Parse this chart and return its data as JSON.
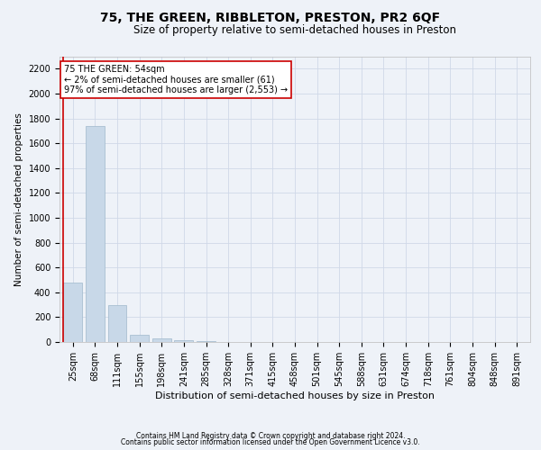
{
  "title": "75, THE GREEN, RIBBLETON, PRESTON, PR2 6QF",
  "subtitle": "Size of property relative to semi-detached houses in Preston",
  "xlabel": "Distribution of semi-detached houses by size in Preston",
  "ylabel": "Number of semi-detached properties",
  "footnote1": "Contains HM Land Registry data © Crown copyright and database right 2024.",
  "footnote2": "Contains public sector information licensed under the Open Government Licence v3.0.",
  "annotation_title": "75 THE GREEN: 54sqm",
  "annotation_line2": "← 2% of semi-detached houses are smaller (61)",
  "annotation_line3": "97% of semi-detached houses are larger (2,553) →",
  "bar_color": "#c8d8e8",
  "bar_edge_color": "#a0b8cc",
  "marker_line_color": "#cc0000",
  "annotation_box_color": "#ffffff",
  "annotation_box_edge": "#cc0000",
  "grid_color": "#d0d8e8",
  "background_color": "#eef2f8",
  "categories": [
    "25sqm",
    "68sqm",
    "111sqm",
    "155sqm",
    "198sqm",
    "241sqm",
    "285sqm",
    "328sqm",
    "371sqm",
    "415sqm",
    "458sqm",
    "501sqm",
    "545sqm",
    "588sqm",
    "631sqm",
    "674sqm",
    "718sqm",
    "761sqm",
    "804sqm",
    "848sqm",
    "891sqm"
  ],
  "values": [
    480,
    1740,
    300,
    60,
    30,
    18,
    5,
    0,
    0,
    0,
    0,
    0,
    0,
    0,
    0,
    0,
    0,
    0,
    0,
    0,
    0
  ],
  "ylim": [
    0,
    2300
  ],
  "yticks": [
    0,
    200,
    400,
    600,
    800,
    1000,
    1200,
    1400,
    1600,
    1800,
    2000,
    2200
  ],
  "title_fontsize": 10,
  "subtitle_fontsize": 8.5,
  "ylabel_fontsize": 7.5,
  "xlabel_fontsize": 8,
  "tick_fontsize": 7,
  "annotation_fontsize": 7,
  "footnote_fontsize": 5.5
}
